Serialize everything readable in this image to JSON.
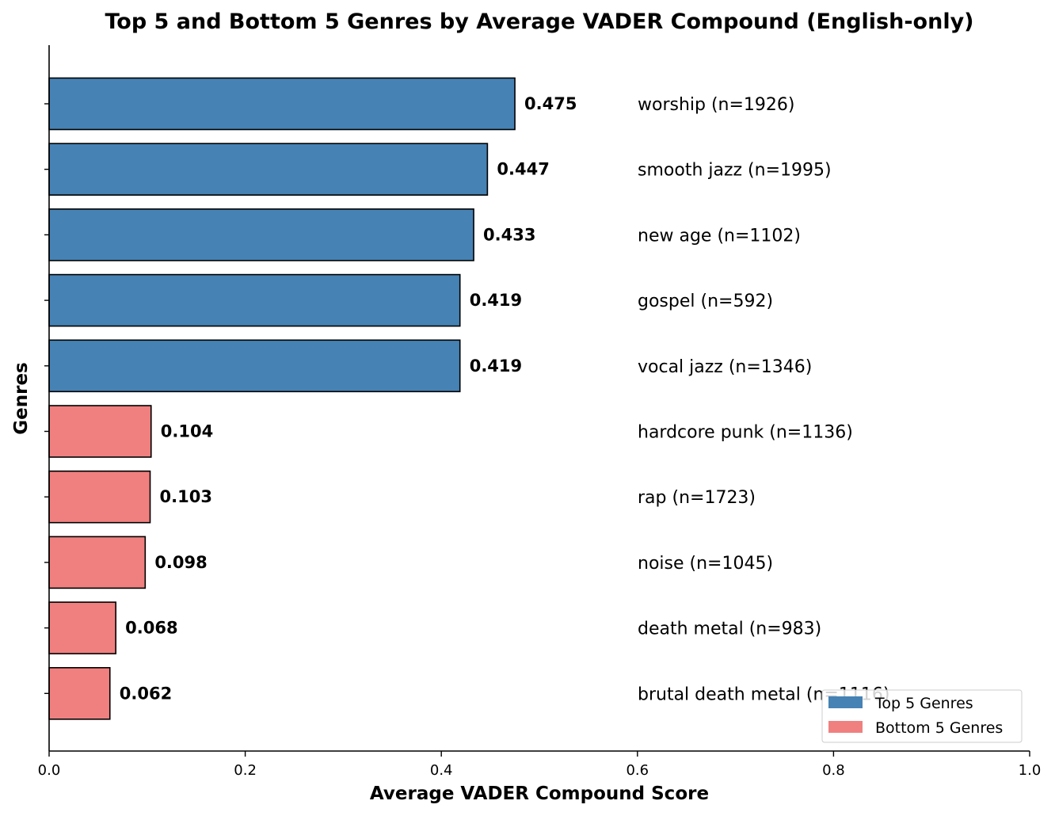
{
  "chart_data": {
    "type": "bar",
    "orientation": "horizontal",
    "title": "Top 5 and Bottom 5 Genres by Average VADER Compound (English-only)",
    "xlabel": "Average VADER Compound Score",
    "ylabel": "Genres",
    "xlim": [
      0.0,
      1.0
    ],
    "x_ticks": [
      "0.0",
      "0.2",
      "0.4",
      "0.6",
      "0.8",
      "1.0"
    ],
    "grid": false,
    "legend_position": "bottom-right",
    "bars": [
      {
        "value": 0.475,
        "value_label": "0.475",
        "category": "worship (n=1926)",
        "group": "top"
      },
      {
        "value": 0.447,
        "value_label": "0.447",
        "category": "smooth jazz (n=1995)",
        "group": "top"
      },
      {
        "value": 0.433,
        "value_label": "0.433",
        "category": "new age (n=1102)",
        "group": "top"
      },
      {
        "value": 0.419,
        "value_label": "0.419",
        "category": "gospel (n=592)",
        "group": "top"
      },
      {
        "value": 0.419,
        "value_label": "0.419",
        "category": "vocal jazz (n=1346)",
        "group": "top"
      },
      {
        "value": 0.104,
        "value_label": "0.104",
        "category": "hardcore punk (n=1136)",
        "group": "bottom"
      },
      {
        "value": 0.103,
        "value_label": "0.103",
        "category": "rap (n=1723)",
        "group": "bottom"
      },
      {
        "value": 0.098,
        "value_label": "0.098",
        "category": "noise (n=1045)",
        "group": "bottom"
      },
      {
        "value": 0.068,
        "value_label": "0.068",
        "category": "death metal (n=983)",
        "group": "bottom"
      },
      {
        "value": 0.062,
        "value_label": "0.062",
        "category": "brutal death metal (n=1116)",
        "group": "bottom"
      }
    ],
    "series": [
      {
        "key": "top",
        "name": "Top 5 Genres",
        "color": "#4682b4"
      },
      {
        "key": "bottom",
        "name": "Bottom 5 Genres",
        "color": "#f08080"
      }
    ]
  }
}
